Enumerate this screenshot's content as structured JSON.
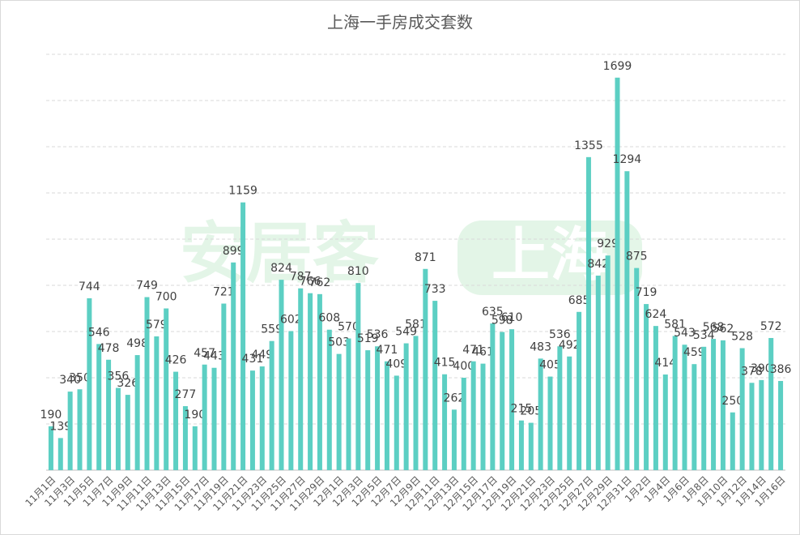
{
  "chart_data": {
    "type": "bar",
    "title": "上海一手房成交套数",
    "watermark": [
      "安居客",
      "上海"
    ],
    "categories": [
      "11月1日",
      null,
      "11月3日",
      null,
      "11月5日",
      null,
      "11月7日",
      null,
      "11月9日",
      null,
      "11月11日",
      null,
      "11月13日",
      null,
      "11月15日",
      null,
      "11月17日",
      null,
      "11月19日",
      null,
      "11月21日",
      null,
      "11月23日",
      null,
      "11月25日",
      null,
      "11月27日",
      null,
      "11月29日",
      null,
      "12月1日",
      null,
      "12月3日",
      null,
      "12月5日",
      null,
      "12月7日",
      null,
      "12月9日",
      null,
      "12月11日",
      null,
      "12月13日",
      null,
      "12月15日",
      null,
      "12月17日",
      null,
      "12月19日",
      null,
      "12月21日",
      null,
      "12月23日",
      null,
      "12月25日",
      null,
      "12月27日",
      null,
      "12月29日",
      null,
      "12月31日",
      null,
      "1月2日",
      null,
      "1月4日",
      null,
      "1月6日",
      null,
      "1月8日",
      null,
      "1月10日",
      null,
      "1月12日",
      null,
      "1月14日",
      null,
      "1月16日"
    ],
    "values": [
      190,
      139,
      340,
      350,
      744,
      546,
      478,
      356,
      326,
      498,
      749,
      579,
      700,
      426,
      277,
      190,
      457,
      443,
      721,
      899,
      1159,
      431,
      449,
      559,
      824,
      602,
      787,
      766,
      762,
      608,
      503,
      570,
      810,
      519,
      536,
      471,
      409,
      549,
      581,
      871,
      733,
      415,
      262,
      400,
      471,
      461,
      635,
      598,
      610,
      215,
      205,
      483,
      405,
      536,
      492,
      685,
      1355,
      842,
      929,
      1699,
      1294,
      875,
      719,
      624,
      414,
      581,
      543,
      459,
      534,
      568,
      562,
      250,
      528,
      378,
      390,
      572,
      386
    ],
    "color": "#5ccfc3",
    "ylim": [
      0,
      1800
    ],
    "yticks": [
      0,
      200,
      400,
      600,
      800,
      1000,
      1200,
      1400,
      1600,
      1800
    ],
    "grid": true
  }
}
